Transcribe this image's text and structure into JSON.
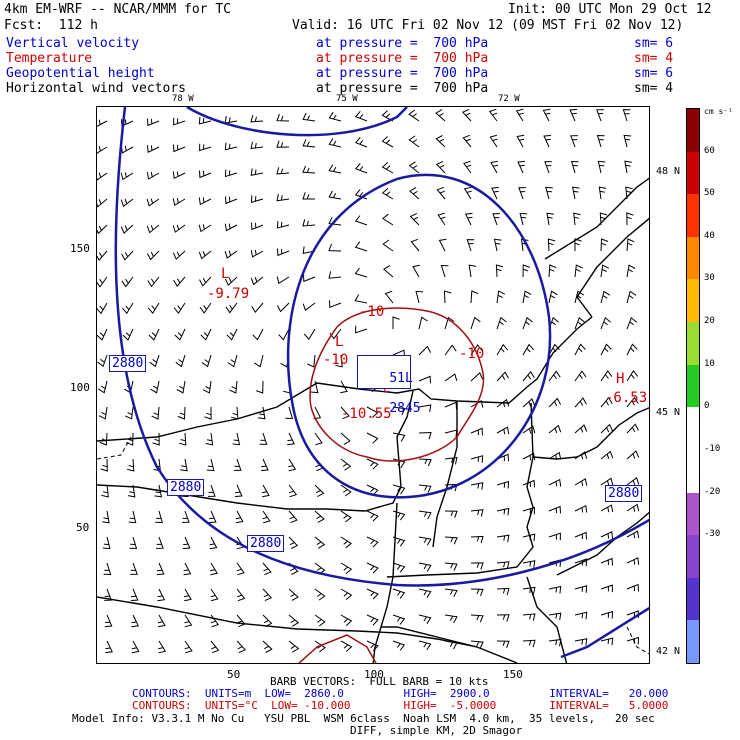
{
  "header": {
    "model": "4km EM-WRF -- NCAR/MMM for TC",
    "init": "Init: 00 UTC Mon 29 Oct 12",
    "fcst": "Fcst:  112 h",
    "valid": "Valid: 16 UTC Fri 02 Nov 12 (09 MST Fri 02 Nov 12)"
  },
  "fields": [
    {
      "name": "Vertical velocity",
      "level": "at pressure =  700 hPa",
      "sm": "sm= 6",
      "color": "#0000cc"
    },
    {
      "name": "Temperature",
      "level": "at pressure =  700 hPa",
      "sm": "sm= 4",
      "color": "#cc0000"
    },
    {
      "name": "Geopotential height",
      "level": "at pressure =  700 hPa",
      "sm": "sm= 6",
      "color": "#0000cc"
    },
    {
      "name": "Horizontal wind vectors",
      "level": "at pressure =  700 hPa",
      "sm": "sm= 4",
      "color": "#000000"
    }
  ],
  "axes": {
    "lon_labels": [
      "78 W",
      "75 W",
      "72 W"
    ],
    "lat_labels": [
      "48 N",
      "45 N",
      "42 N"
    ],
    "y_ticks": [
      "150",
      "100",
      "50"
    ],
    "x_ticks": [
      "50",
      "100",
      "150"
    ]
  },
  "colorbar": {
    "unit": "cm s⁻¹",
    "labels": [
      "60",
      "50",
      "40",
      "30",
      "20",
      "10",
      "0",
      "-10",
      "-20",
      "-30"
    ],
    "colors": [
      "#8b0000",
      "#cc0000",
      "#ff3300",
      "#ff8800",
      "#ffbb00",
      "#99dd33",
      "#22cc22",
      "#ffffff",
      "#ffffff",
      "#aa55cc",
      "#8844cc",
      "#5533cc",
      "#7799ff"
    ]
  },
  "annotations": {
    "low_temp_label": "L",
    "low_temp_value": "-9.79",
    "high_label": "H",
    "high_value": "-6.53",
    "center_low_label": "L",
    "center_low_value": "-10.55",
    "height_box_a": "51L",
    "height_box_b": "2845",
    "contour_2880_a": "2880",
    "contour_2880_b": "2880",
    "contour_2880_c": "2880",
    "contour_2880_d": "2880",
    "temp_m10_a": "-10",
    "temp_m10_b": "-10",
    "temp_m10_c": "-10",
    "l_small": "L"
  },
  "footer": {
    "barb": "BARB VECTORS:  FULL BARB = 10 kts",
    "contours_height": "CONTOURS:  UNITS=m  LOW=  2860.0         HIGH=  2900.0         INTERVAL=   20.000",
    "contours_temp": "CONTOURS:  UNITS=°C  LOW= -10.000        HIGH=  -5.0000        INTERVAL=   5.0000",
    "model_info": "Model Info: V3.3.1 M No Cu   YSU PBL  WSM 6class  Noah LSM  4.0 km,  35 levels,   20 sec",
    "model_info2": "DIFF, simple KM, 2D Smagor"
  }
}
